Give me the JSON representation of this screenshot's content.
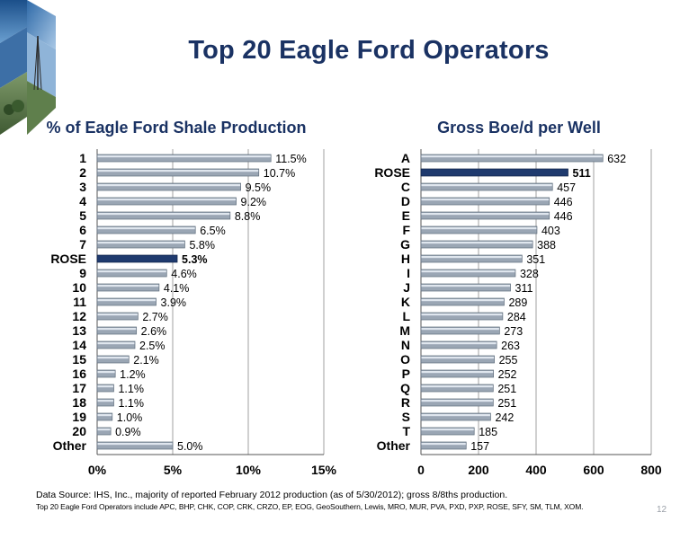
{
  "header": {
    "title": "Top 20 Eagle Ford Operators"
  },
  "footer": {
    "source": "Data Source: IHS, Inc., majority of reported February 2012 production (as of 5/30/2012); gross 8/8ths production.",
    "operators": "Top 20 Eagle Ford Operators include APC, BHP, CHK, COP, CRK, CRZO, EP, EOG, GeoSouthern, Lewis, MRO, MUR, PVA, PXD, PXP, ROSE, SFY, SM, TLM, XOM.",
    "page_number": "12"
  },
  "colors": {
    "title": "#1a3263",
    "bar": "#9aa6b4",
    "bar_highlight": "#1f3a6e",
    "axis_text": "#000000"
  },
  "chart_data": [
    {
      "type": "bar",
      "orientation": "horizontal",
      "title": "% of Eagle Ford Shale Production",
      "categories": [
        "1",
        "2",
        "3",
        "4",
        "5",
        "6",
        "7",
        "ROSE",
        "9",
        "10",
        "11",
        "12",
        "13",
        "14",
        "15",
        "16",
        "17",
        "18",
        "19",
        "20",
        "Other"
      ],
      "values": [
        11.5,
        10.7,
        9.5,
        9.2,
        8.8,
        6.5,
        5.8,
        5.3,
        4.6,
        4.1,
        3.9,
        2.7,
        2.6,
        2.5,
        2.1,
        1.2,
        1.1,
        1.1,
        1.0,
        0.9,
        5.0
      ],
      "value_labels": [
        "11.5%",
        "10.7%",
        "9.5%",
        "9.2%",
        "8.8%",
        "6.5%",
        "5.8%",
        "5.3%",
        "4.6%",
        "4.1%",
        "3.9%",
        "2.7%",
        "2.6%",
        "2.5%",
        "2.1%",
        "1.2%",
        "1.1%",
        "1.1%",
        "1.0%",
        "0.9%",
        "5.0%"
      ],
      "highlight": "ROSE",
      "xlim": [
        0,
        15
      ],
      "ticks": [
        0,
        5,
        10,
        15
      ],
      "tick_labels": [
        "0%",
        "5%",
        "10%",
        "15%"
      ],
      "grid": true
    },
    {
      "type": "bar",
      "orientation": "horizontal",
      "title": "Gross Boe/d per Well",
      "categories": [
        "A",
        "ROSE",
        "C",
        "D",
        "E",
        "F",
        "G",
        "H",
        "I",
        "J",
        "K",
        "L",
        "M",
        "N",
        "O",
        "P",
        "Q",
        "R",
        "S",
        "T",
        "Other"
      ],
      "values": [
        632,
        511,
        457,
        446,
        446,
        403,
        388,
        351,
        328,
        311,
        289,
        284,
        273,
        263,
        255,
        252,
        251,
        251,
        242,
        185,
        157
      ],
      "value_labels": [
        "632",
        "511",
        "457",
        "446",
        "446",
        "403",
        "388",
        "351",
        "328",
        "311",
        "289",
        "284",
        "273",
        "263",
        "255",
        "252",
        "251",
        "251",
        "242",
        "185",
        "157"
      ],
      "highlight": "ROSE",
      "xlim": [
        0,
        800
      ],
      "ticks": [
        0,
        200,
        400,
        600,
        800
      ],
      "tick_labels": [
        "0",
        "200",
        "400",
        "600",
        "800"
      ],
      "grid": true
    }
  ]
}
